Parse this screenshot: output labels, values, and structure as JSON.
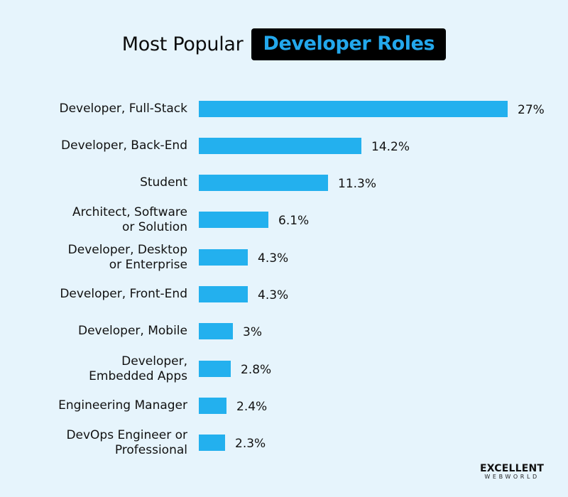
{
  "title": {
    "plain": "Most Popular",
    "highlight": "Developer Roles"
  },
  "logo": {
    "top": "EXCELLENT",
    "bottom": "WEBWORLD"
  },
  "colors": {
    "background": "#e6f4fc",
    "bar": "#23b0ee",
    "title_highlight_text": "#23a8ec",
    "title_highlight_bg": "#000000"
  },
  "chart_data": {
    "type": "bar",
    "orientation": "horizontal",
    "title": "Most Popular Developer Roles",
    "xlabel": "",
    "ylabel": "",
    "grid": false,
    "legend": null,
    "categories": [
      "Developer, Full-Stack",
      "Developer, Back-End",
      "Student",
      "Architect, Software or Solution",
      "Developer, Desktop or Enterprise",
      "Developer, Front-End",
      "Developer, Mobile",
      "Developer, Embedded Apps",
      "Engineering Manager",
      "DevOps Engineer or Professional"
    ],
    "values": [
      27,
      14.2,
      11.3,
      6.1,
      4.3,
      4.3,
      3,
      2.8,
      2.4,
      2.3
    ],
    "value_labels": [
      "27%",
      "14.2%",
      "11.3%",
      "6.1%",
      "4.3%",
      "4.3%",
      "3%",
      "2.8%",
      "2.4%",
      "2.3%"
    ],
    "unit": "%"
  },
  "rows": [
    {
      "label": "Developer, Full-Stack",
      "value": "27%"
    },
    {
      "label": "Developer, Back-End",
      "value": "14.2%"
    },
    {
      "label": "Student",
      "value": "11.3%"
    },
    {
      "label": "Architect, Software\nor Solution",
      "value": "6.1%"
    },
    {
      "label": "Developer, Desktop\nor Enterprise",
      "value": "4.3%"
    },
    {
      "label": "Developer, Front-End",
      "value": "4.3%"
    },
    {
      "label": "Developer, Mobile",
      "value": "3%"
    },
    {
      "label": "Developer,\nEmbedded Apps",
      "value": "2.8%"
    },
    {
      "label": "Engineering Manager",
      "value": "2.4%"
    },
    {
      "label": "DevOps Engineer or\nProfessional",
      "value": "2.3%"
    }
  ]
}
